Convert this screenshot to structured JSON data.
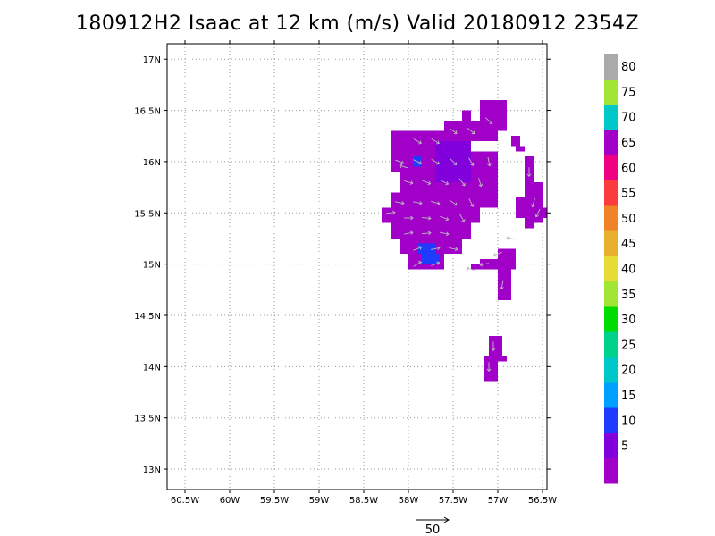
{
  "chart_data": {
    "type": "heatmap",
    "title": "180912H2 Isaac at 12 km (m/s) Valid 20180912 2354Z",
    "xlim": [
      -60.7,
      -56.45
    ],
    "ylim": [
      12.8,
      17.15
    ],
    "x_ticks": [
      {
        "value": -60.5,
        "label": "60.5W"
      },
      {
        "value": -60.0,
        "label": "60W"
      },
      {
        "value": -59.5,
        "label": "59.5W"
      },
      {
        "value": -59.0,
        "label": "59W"
      },
      {
        "value": -58.5,
        "label": "58.5W"
      },
      {
        "value": -58.0,
        "label": "58W"
      },
      {
        "value": -57.5,
        "label": "57.5W"
      },
      {
        "value": -57.0,
        "label": "57W"
      },
      {
        "value": -56.5,
        "label": "56.5W"
      }
    ],
    "y_ticks": [
      {
        "value": 13.0,
        "label": "13N"
      },
      {
        "value": 13.5,
        "label": "13.5N"
      },
      {
        "value": 14.0,
        "label": "14N"
      },
      {
        "value": 14.5,
        "label": "14.5N"
      },
      {
        "value": 15.0,
        "label": "15N"
      },
      {
        "value": 15.5,
        "label": "15.5N"
      },
      {
        "value": 16.0,
        "label": "16N"
      },
      {
        "value": 16.5,
        "label": "16.5N"
      },
      {
        "value": 17.0,
        "label": "17N"
      }
    ],
    "grid": true,
    "colorbar": {
      "placement": "right",
      "levels": [
        {
          "label": "",
          "color": "#a000c8"
        },
        {
          "label": "5",
          "color": "#8200dc"
        },
        {
          "label": "10",
          "color": "#1e3cff"
        },
        {
          "label": "15",
          "color": "#00a0ff"
        },
        {
          "label": "20",
          "color": "#00c8c8"
        },
        {
          "label": "25",
          "color": "#00d28c"
        },
        {
          "label": "30",
          "color": "#00dc00"
        },
        {
          "label": "35",
          "color": "#a0e632"
        },
        {
          "label": "40",
          "color": "#e6dc32"
        },
        {
          "label": "45",
          "color": "#e6af2d"
        },
        {
          "label": "50",
          "color": "#f08228"
        },
        {
          "label": "55",
          "color": "#fa3c3c"
        },
        {
          "label": "60",
          "color": "#f00082"
        },
        {
          "label": "65",
          "color": "#a000c8"
        },
        {
          "label": "70",
          "color": "#00c8c8"
        },
        {
          "label": "75",
          "color": "#a0e632"
        },
        {
          "label": "80",
          "color": "#aaaaaa"
        }
      ]
    },
    "vector_key": {
      "value": "50"
    },
    "cell_size_deg": 0.1,
    "cells": [
      {
        "x0": -58.0,
        "x1": -57.6,
        "y0": 16.3,
        "y1": 16.1,
        "v": 2
      },
      {
        "x0": -57.6,
        "x1": -57.0,
        "y0": 16.4,
        "y1": 16.2,
        "v": 2
      },
      {
        "x0": -57.4,
        "x1": -57.3,
        "y0": 16.5,
        "y1": 16.4,
        "v": 2
      },
      {
        "x0": -57.2,
        "x1": -56.9,
        "y0": 16.6,
        "y1": 16.3,
        "v": 2
      },
      {
        "x0": -58.2,
        "x1": -57.9,
        "y0": 16.3,
        "y1": 16.1,
        "v": 2
      },
      {
        "x0": -58.2,
        "x1": -57.0,
        "y0": 16.1,
        "y1": 15.9,
        "v": 2
      },
      {
        "x0": -58.1,
        "x1": -57.0,
        "y0": 15.9,
        "y1": 15.7,
        "v": 2
      },
      {
        "x0": -58.2,
        "x1": -57.0,
        "y0": 15.7,
        "y1": 15.55,
        "v": 2
      },
      {
        "x0": -58.3,
        "x1": -57.2,
        "y0": 15.55,
        "y1": 15.4,
        "v": 2
      },
      {
        "x0": -58.2,
        "x1": -57.3,
        "y0": 15.4,
        "y1": 15.25,
        "v": 2
      },
      {
        "x0": -58.1,
        "x1": -57.4,
        "y0": 15.25,
        "y1": 15.1,
        "v": 2
      },
      {
        "x0": -58.0,
        "x1": -57.6,
        "y0": 15.1,
        "y1": 14.95,
        "v": 2
      },
      {
        "x0": -57.7,
        "x1": -57.3,
        "y0": 16.2,
        "y1": 15.8,
        "v": 8
      },
      {
        "x0": -57.95,
        "x1": -57.85,
        "y0": 16.05,
        "y1": 15.95,
        "v": 12
      },
      {
        "x0": -57.9,
        "x1": -57.7,
        "y0": 15.2,
        "y1": 15.1,
        "v": 12
      },
      {
        "x0": -57.85,
        "x1": -57.65,
        "y0": 15.1,
        "y1": 15.0,
        "v": 12
      },
      {
        "x0": -56.85,
        "x1": -56.75,
        "y0": 16.25,
        "y1": 16.15,
        "v": 2
      },
      {
        "x0": -56.8,
        "x1": -56.7,
        "y0": 16.15,
        "y1": 16.1,
        "v": 2
      },
      {
        "x0": -56.7,
        "x1": -56.6,
        "y0": 16.05,
        "y1": 15.6,
        "v": 2
      },
      {
        "x0": -56.6,
        "x1": -56.5,
        "y0": 15.8,
        "y1": 15.4,
        "v": 2
      },
      {
        "x0": -56.8,
        "x1": -56.5,
        "y0": 15.65,
        "y1": 15.45,
        "v": 2
      },
      {
        "x0": -56.5,
        "x1": -56.45,
        "y0": 15.55,
        "y1": 15.45,
        "v": 2
      },
      {
        "x0": -56.7,
        "x1": -56.6,
        "y0": 15.45,
        "y1": 15.35,
        "v": 2
      },
      {
        "x0": -57.0,
        "x1": -56.8,
        "y0": 15.15,
        "y1": 15.05,
        "v": 2
      },
      {
        "x0": -57.2,
        "x1": -56.8,
        "y0": 15.05,
        "y1": 14.95,
        "v": 2
      },
      {
        "x0": -57.3,
        "x1": -57.15,
        "y0": 15.0,
        "y1": 14.95,
        "v": 2
      },
      {
        "x0": -57.0,
        "x1": -56.85,
        "y0": 14.95,
        "y1": 14.65,
        "v": 2
      },
      {
        "x0": -57.1,
        "x1": -56.95,
        "y0": 14.3,
        "y1": 14.1,
        "v": 2
      },
      {
        "x0": -57.15,
        "x1": -57.0,
        "y0": 14.1,
        "y1": 13.85,
        "v": 2
      },
      {
        "x0": -57.0,
        "x1": -56.9,
        "y0": 14.1,
        "y1": 14.05,
        "v": 2
      }
    ],
    "vectors": [
      {
        "x": -57.9,
        "y": 16.2,
        "dx": 1,
        "dy": -0.6
      },
      {
        "x": -57.7,
        "y": 16.2,
        "dx": 1,
        "dy": -0.6
      },
      {
        "x": -57.5,
        "y": 16.3,
        "dx": 1,
        "dy": -0.7
      },
      {
        "x": -57.3,
        "y": 16.3,
        "dx": 1,
        "dy": -0.8
      },
      {
        "x": -57.1,
        "y": 16.4,
        "dx": 1,
        "dy": -0.9
      },
      {
        "x": -58.1,
        "y": 16.0,
        "dx": 1,
        "dy": -0.4
      },
      {
        "x": -57.9,
        "y": 16.0,
        "dx": 1,
        "dy": -0.5
      },
      {
        "x": -57.7,
        "y": 16.0,
        "dx": 1,
        "dy": -0.6
      },
      {
        "x": -57.5,
        "y": 16.0,
        "dx": 0.9,
        "dy": -0.9
      },
      {
        "x": -57.3,
        "y": 16.0,
        "dx": 0.6,
        "dy": -1
      },
      {
        "x": -57.1,
        "y": 16.0,
        "dx": 0.2,
        "dy": -1
      },
      {
        "x": -58.0,
        "y": 15.8,
        "dx": 1,
        "dy": -0.3
      },
      {
        "x": -57.8,
        "y": 15.8,
        "dx": 1,
        "dy": -0.4
      },
      {
        "x": -57.6,
        "y": 15.8,
        "dx": 1,
        "dy": -0.5
      },
      {
        "x": -57.4,
        "y": 15.8,
        "dx": 0.7,
        "dy": -0.9
      },
      {
        "x": -57.2,
        "y": 15.8,
        "dx": 0.3,
        "dy": -1
      },
      {
        "x": -58.1,
        "y": 15.6,
        "dx": 1,
        "dy": -0.2
      },
      {
        "x": -57.9,
        "y": 15.6,
        "dx": 1,
        "dy": -0.2
      },
      {
        "x": -57.7,
        "y": 15.6,
        "dx": 1,
        "dy": -0.3
      },
      {
        "x": -57.5,
        "y": 15.6,
        "dx": 0.9,
        "dy": -0.6
      },
      {
        "x": -57.3,
        "y": 15.6,
        "dx": 0.5,
        "dy": -1
      },
      {
        "x": -58.2,
        "y": 15.5,
        "dx": 1,
        "dy": 0.1
      },
      {
        "x": -58.0,
        "y": 15.45,
        "dx": 1,
        "dy": 0
      },
      {
        "x": -57.8,
        "y": 15.45,
        "dx": 1,
        "dy": -0.1
      },
      {
        "x": -57.6,
        "y": 15.45,
        "dx": 1,
        "dy": -0.4
      },
      {
        "x": -57.4,
        "y": 15.45,
        "dx": 0.6,
        "dy": -1
      },
      {
        "x": -58.0,
        "y": 15.3,
        "dx": 1,
        "dy": 0.2
      },
      {
        "x": -57.8,
        "y": 15.3,
        "dx": 1,
        "dy": 0.1
      },
      {
        "x": -57.6,
        "y": 15.3,
        "dx": 1,
        "dy": -0.2
      },
      {
        "x": -57.9,
        "y": 15.15,
        "dx": 1,
        "dy": 0.4
      },
      {
        "x": -57.7,
        "y": 15.15,
        "dx": 1,
        "dy": 0.2
      },
      {
        "x": -57.5,
        "y": 15.15,
        "dx": 1,
        "dy": -0.2
      },
      {
        "x": -57.9,
        "y": 15.0,
        "dx": 1,
        "dy": 0.6
      },
      {
        "x": -57.7,
        "y": 15.0,
        "dx": 1,
        "dy": 0.4
      },
      {
        "x": -56.65,
        "y": 15.9,
        "dx": 0,
        "dy": -1
      },
      {
        "x": -56.6,
        "y": 15.6,
        "dx": -0.3,
        "dy": -1
      },
      {
        "x": -56.55,
        "y": 15.5,
        "dx": -0.5,
        "dy": -1
      },
      {
        "x": -57.0,
        "y": 15.1,
        "dx": -1,
        "dy": -0.4
      },
      {
        "x": -57.15,
        "y": 15.0,
        "dx": -1,
        "dy": -0.2
      },
      {
        "x": -56.95,
        "y": 14.8,
        "dx": -0.2,
        "dy": -1
      },
      {
        "x": -57.05,
        "y": 14.2,
        "dx": 0,
        "dy": -1
      },
      {
        "x": -57.1,
        "y": 14.0,
        "dx": 0,
        "dy": -1
      },
      {
        "x": -58.05,
        "y": 15.95,
        "dx": -1,
        "dy": 0.3
      },
      {
        "x": -56.85,
        "y": 15.25,
        "dx": -1,
        "dy": 0.2
      },
      {
        "x": -57.3,
        "y": 14.95,
        "dx": -1,
        "dy": 0.3
      }
    ]
  }
}
